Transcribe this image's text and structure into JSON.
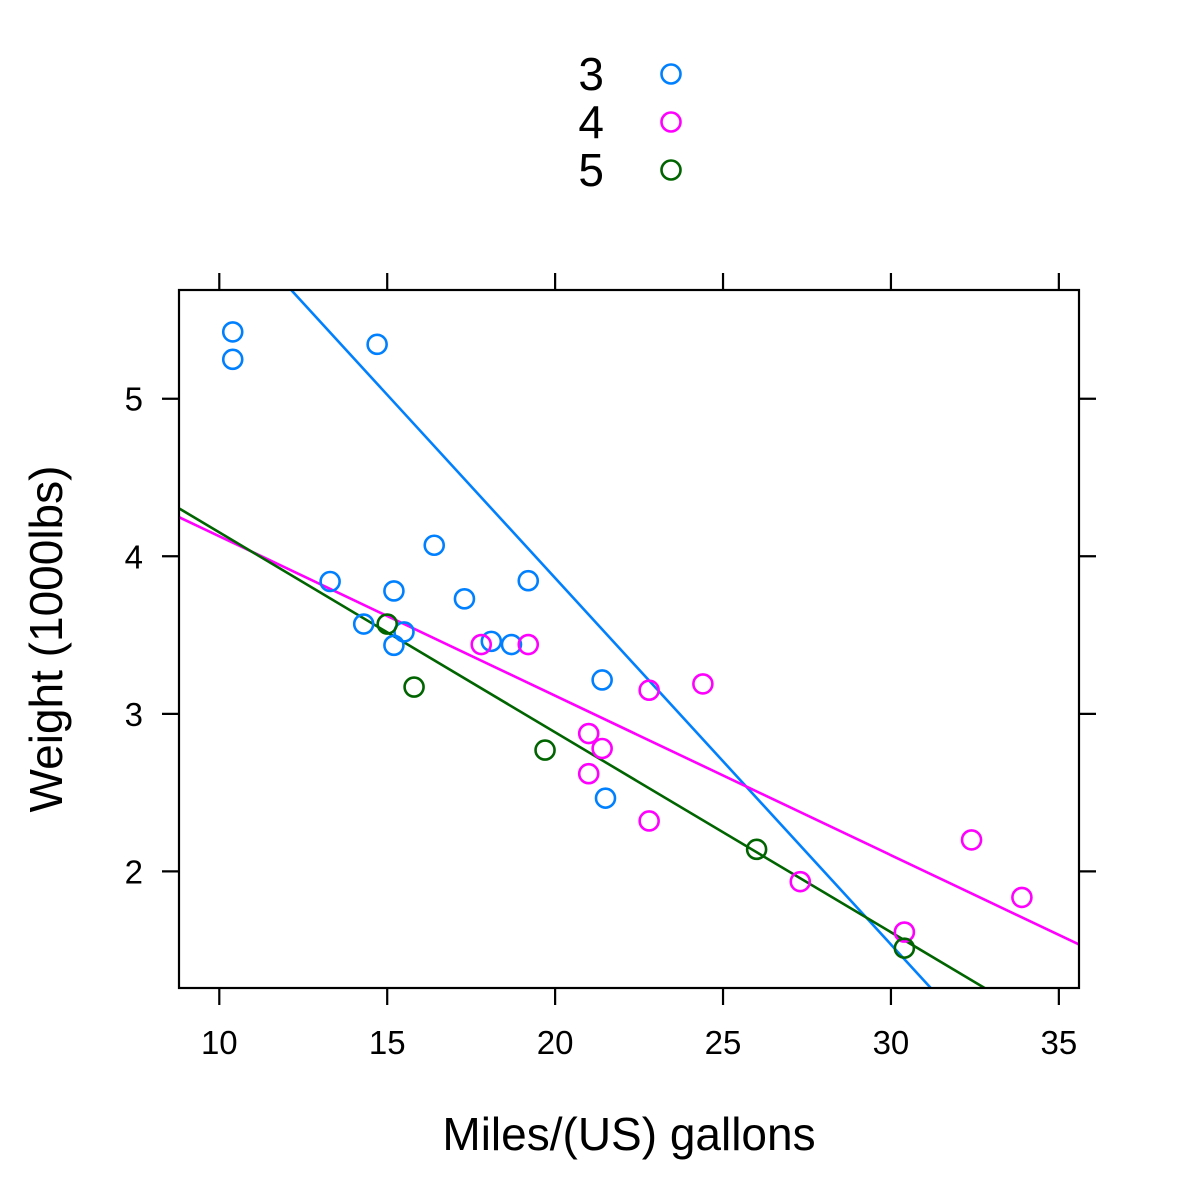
{
  "chart_data": {
    "type": "scatter",
    "title": "",
    "xlabel": "Miles/(US) gallons",
    "ylabel": "Weight (1000lbs)",
    "xlim": [
      8.8,
      35.6
    ],
    "ylim": [
      1.26,
      5.69
    ],
    "xticks": [
      10,
      15,
      20,
      25,
      30,
      35
    ],
    "xtick_labels": [
      "10",
      "15",
      "20",
      "25",
      "30",
      "35"
    ],
    "yticks": [
      2,
      3,
      4,
      5
    ],
    "ytick_labels": [
      "2",
      "3",
      "4",
      "5"
    ],
    "grid": false,
    "legend_position": "top-center",
    "series": [
      {
        "name": "3",
        "color": "#0080ff",
        "points": [
          {
            "x": 10.4,
            "y": 5.424
          },
          {
            "x": 10.4,
            "y": 5.25
          },
          {
            "x": 14.7,
            "y": 5.345
          },
          {
            "x": 13.3,
            "y": 3.84
          },
          {
            "x": 14.3,
            "y": 3.57
          },
          {
            "x": 15.2,
            "y": 3.78
          },
          {
            "x": 15.2,
            "y": 3.435
          },
          {
            "x": 15.5,
            "y": 3.52
          },
          {
            "x": 16.4,
            "y": 4.07
          },
          {
            "x": 17.3,
            "y": 3.73
          },
          {
            "x": 18.1,
            "y": 3.46
          },
          {
            "x": 18.7,
            "y": 3.44
          },
          {
            "x": 19.2,
            "y": 3.845
          },
          {
            "x": 21.4,
            "y": 3.215
          },
          {
            "x": 21.5,
            "y": 2.465
          }
        ],
        "fit": {
          "intercept": 8.514,
          "slope": -0.2326
        }
      },
      {
        "name": "4",
        "color": "#ff00ff",
        "points": [
          {
            "x": 17.8,
            "y": 3.44
          },
          {
            "x": 19.2,
            "y": 3.44
          },
          {
            "x": 21.0,
            "y": 2.62
          },
          {
            "x": 21.0,
            "y": 2.875
          },
          {
            "x": 21.4,
            "y": 2.78
          },
          {
            "x": 22.8,
            "y": 2.32
          },
          {
            "x": 22.8,
            "y": 3.15
          },
          {
            "x": 24.4,
            "y": 3.19
          },
          {
            "x": 27.3,
            "y": 1.935
          },
          {
            "x": 30.4,
            "y": 1.615
          },
          {
            "x": 32.4,
            "y": 2.2
          },
          {
            "x": 33.9,
            "y": 1.835
          }
        ],
        "fit": {
          "intercept": 5.139,
          "slope": -0.1012
        }
      },
      {
        "name": "5",
        "color": "#006400",
        "points": [
          {
            "x": 15.0,
            "y": 3.57
          },
          {
            "x": 15.8,
            "y": 3.17
          },
          {
            "x": 19.7,
            "y": 2.77
          },
          {
            "x": 26.0,
            "y": 2.14
          },
          {
            "x": 30.4,
            "y": 1.513
          }
        ],
        "fit": {
          "intercept": 5.421,
          "slope": -0.1269
        }
      }
    ]
  }
}
